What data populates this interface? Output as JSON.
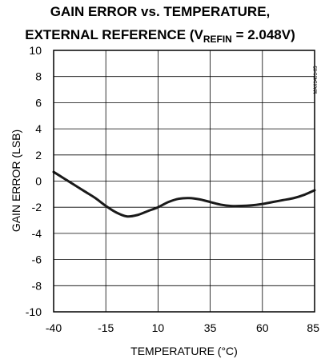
{
  "chart_data": {
    "type": "line",
    "title_line1": "GAIN ERROR vs. TEMPERATURE,",
    "title_line2_pre": "EXTERNAL REFERENCE (V",
    "title_line2_sub": "REFIN",
    "title_line2_post": " = 2.048V)",
    "xlabel": "TEMPERATURE (°C)",
    "ylabel": "GAIN ERROR (LSB)",
    "xlim": [
      -40,
      85
    ],
    "ylim": [
      -10,
      10
    ],
    "x_ticks": [
      "-40",
      "-15",
      "10",
      "35",
      "60",
      "85"
    ],
    "y_ticks": [
      "10",
      "8",
      "6",
      "4",
      "2",
      "0",
      "-2",
      "-4",
      "-6",
      "-8",
      "-10"
    ],
    "grid": true,
    "figure_code": "MAX1401-05",
    "series": [
      {
        "x": [
          -40,
          -35,
          -30,
          -25,
          -20,
          -15,
          -10,
          -5,
          0,
          5,
          10,
          15,
          20,
          25,
          30,
          35,
          40,
          45,
          50,
          55,
          60,
          65,
          70,
          75,
          80,
          85
        ],
        "y": [
          0.7,
          0.2,
          -0.3,
          -0.8,
          -1.3,
          -1.9,
          -2.4,
          -2.7,
          -2.6,
          -2.3,
          -2.0,
          -1.6,
          -1.35,
          -1.3,
          -1.4,
          -1.6,
          -1.8,
          -1.9,
          -1.9,
          -1.85,
          -1.75,
          -1.6,
          -1.45,
          -1.3,
          -1.05,
          -0.7
        ],
        "color": "#1a1a1a"
      }
    ]
  }
}
